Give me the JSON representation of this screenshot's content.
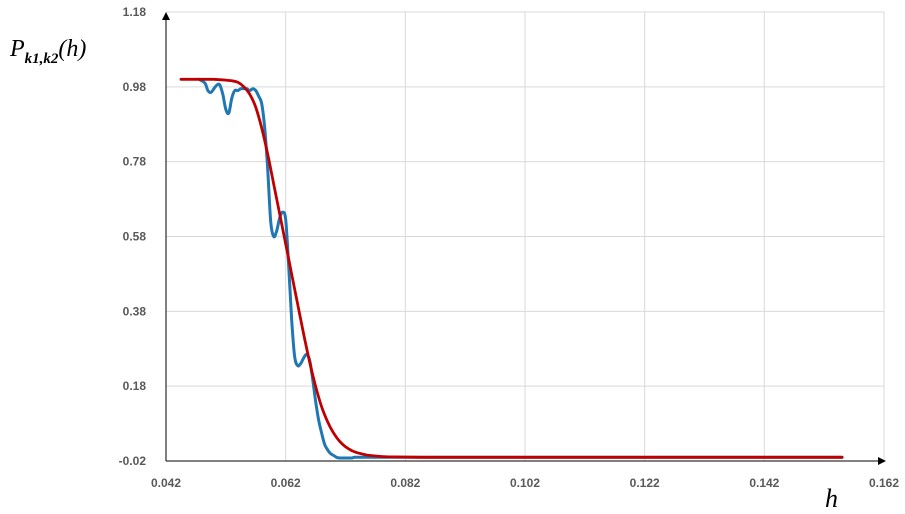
{
  "chart_data": {
    "type": "line",
    "title": "",
    "ylabel": {
      "main": "P",
      "sub": "k1,k2",
      "arg": "(h)"
    },
    "xlabel": "h",
    "xlim": [
      0.042,
      0.162
    ],
    "ylim": [
      -0.02,
      1.18
    ],
    "x_ticks": [
      "0.042",
      "0.062",
      "0.082",
      "0.102",
      "0.122",
      "0.142",
      "0.162"
    ],
    "y_ticks": [
      "-0.02",
      "0.18",
      "0.38",
      "0.58",
      "0.78",
      "0.98",
      "1.18"
    ],
    "grid": true,
    "legend": "none",
    "series": [
      {
        "color": "#1f77b4",
        "x": [
          0.0475,
          0.0485,
          0.049,
          0.0495,
          0.05,
          0.0505,
          0.051,
          0.0515,
          0.052,
          0.0525,
          0.053,
          0.0535,
          0.054,
          0.0545,
          0.055,
          0.0555,
          0.056,
          0.0565,
          0.057,
          0.0575,
          0.058,
          0.0585,
          0.059,
          0.0595,
          0.06,
          0.0605,
          0.061,
          0.0615,
          0.062,
          0.0625,
          0.063,
          0.0635,
          0.064,
          0.0645,
          0.065,
          0.0655,
          0.066,
          0.0665,
          0.067,
          0.0675,
          0.068,
          0.0685,
          0.069,
          0.0695,
          0.07,
          0.0705,
          0.071,
          0.0715,
          0.072,
          0.0725,
          0.073,
          0.0735,
          0.074,
          0.0745,
          0.075,
          0.0755,
          0.076,
          0.077,
          0.078,
          0.08,
          0.085,
          0.09,
          0.1,
          0.11,
          0.12,
          0.13,
          0.14,
          0.15,
          0.155
        ],
        "y": [
          1.0,
          0.99,
          0.97,
          0.965,
          0.975,
          0.985,
          0.985,
          0.96,
          0.92,
          0.91,
          0.95,
          0.97,
          0.97,
          0.975,
          0.975,
          0.975,
          0.97,
          0.975,
          0.97,
          0.955,
          0.935,
          0.87,
          0.76,
          0.62,
          0.58,
          0.595,
          0.63,
          0.645,
          0.625,
          0.5,
          0.36,
          0.26,
          0.235,
          0.24,
          0.255,
          0.265,
          0.25,
          0.2,
          0.14,
          0.09,
          0.055,
          0.025,
          0.01,
          0.0,
          -0.005,
          -0.01,
          -0.012,
          -0.012,
          -0.012,
          -0.012,
          -0.012,
          -0.01,
          -0.01,
          -0.01,
          -0.01,
          -0.01,
          -0.01,
          -0.01,
          -0.01,
          -0.01,
          -0.01,
          -0.01,
          -0.01,
          -0.01,
          -0.01,
          -0.01,
          -0.01,
          -0.01,
          -0.01
        ]
      },
      {
        "color": "#c00000",
        "x": [
          0.0445,
          0.046,
          0.048,
          0.05,
          0.051,
          0.052,
          0.053,
          0.054,
          0.055,
          0.056,
          0.057,
          0.058,
          0.059,
          0.06,
          0.061,
          0.062,
          0.063,
          0.064,
          0.065,
          0.066,
          0.067,
          0.068,
          0.069,
          0.07,
          0.071,
          0.072,
          0.073,
          0.074,
          0.075,
          0.076,
          0.078,
          0.08,
          0.085,
          0.09,
          0.1,
          0.11,
          0.12,
          0.13,
          0.14,
          0.15,
          0.155
        ],
        "y": [
          1.0,
          1.0,
          1.0,
          1.0,
          0.999,
          0.998,
          0.996,
          0.992,
          0.98,
          0.96,
          0.925,
          0.87,
          0.8,
          0.72,
          0.64,
          0.56,
          0.48,
          0.4,
          0.32,
          0.245,
          0.18,
          0.125,
          0.085,
          0.055,
          0.033,
          0.018,
          0.008,
          0.002,
          -0.002,
          -0.005,
          -0.008,
          -0.009,
          -0.01,
          -0.01,
          -0.01,
          -0.01,
          -0.01,
          -0.01,
          -0.01,
          -0.01,
          -0.01
        ]
      }
    ]
  }
}
